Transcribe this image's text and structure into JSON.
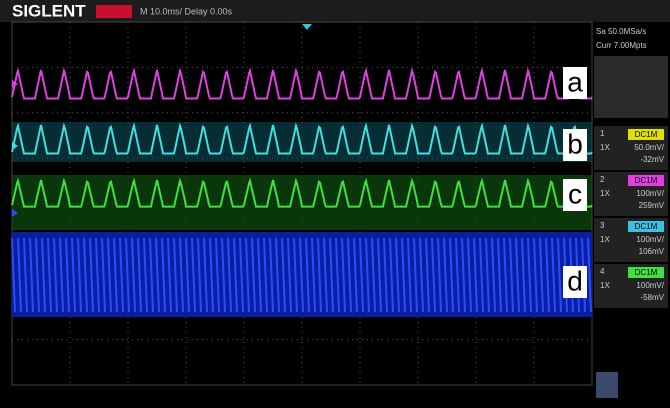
{
  "header": {
    "brand": "SIGLENT",
    "timebase": "M 10.0ms/ Delay 0.00s",
    "sample_rate": "Sa 50.0MSa/s",
    "memory": "Curr 7.00Mpts"
  },
  "traces": [
    {
      "label": "a"
    },
    {
      "label": "b"
    },
    {
      "label": "c"
    },
    {
      "label": "d"
    }
  ],
  "channels": [
    {
      "number": "1",
      "coupling": "DC1M",
      "probe": "1X",
      "scale": "50.0mV/",
      "offset": "-32mV"
    },
    {
      "number": "2",
      "coupling": "DC1M",
      "probe": "1X",
      "scale": "100mV/",
      "offset": "259mV"
    },
    {
      "number": "3",
      "coupling": "DC1M",
      "probe": "1X",
      "scale": "100mV/",
      "offset": "106mV"
    },
    {
      "number": "4",
      "coupling": "DC1M",
      "probe": "1X",
      "scale": "100mV/",
      "offset": "-58mV"
    }
  ]
}
